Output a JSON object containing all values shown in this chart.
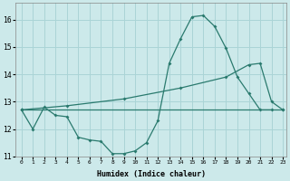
{
  "xlabel": "Humidex (Indice chaleur)",
  "xlim": [
    -0.5,
    23.3
  ],
  "ylim": [
    11,
    16.6
  ],
  "yticks": [
    11,
    12,
    13,
    14,
    15,
    16
  ],
  "xticks": [
    0,
    1,
    2,
    3,
    4,
    5,
    6,
    7,
    8,
    9,
    10,
    11,
    12,
    13,
    14,
    15,
    16,
    17,
    18,
    19,
    20,
    21,
    22,
    23
  ],
  "bg_color": "#cce9ea",
  "grid_color": "#aad4d6",
  "line_color": "#2a7a6e",
  "line1_x": [
    0,
    1,
    2,
    3,
    4,
    5,
    6,
    7,
    8,
    9,
    10,
    11,
    12,
    13,
    14,
    15,
    16,
    17,
    18,
    19,
    20,
    21,
    22
  ],
  "line1_y": [
    12.7,
    12.0,
    12.8,
    12.5,
    12.45,
    11.7,
    11.6,
    11.55,
    11.1,
    11.1,
    11.2,
    11.5,
    12.3,
    14.4,
    15.3,
    16.1,
    16.15,
    15.75,
    14.95,
    13.9,
    13.3,
    12.7,
    12.7
  ],
  "line2_x": [
    0,
    23
  ],
  "line2_y": [
    12.7,
    12.7
  ],
  "line3_x": [
    0,
    4,
    9,
    14,
    18,
    20,
    21,
    22,
    23
  ],
  "line3_y": [
    12.7,
    12.85,
    13.1,
    13.5,
    13.9,
    14.35,
    14.4,
    13.0,
    12.7
  ]
}
